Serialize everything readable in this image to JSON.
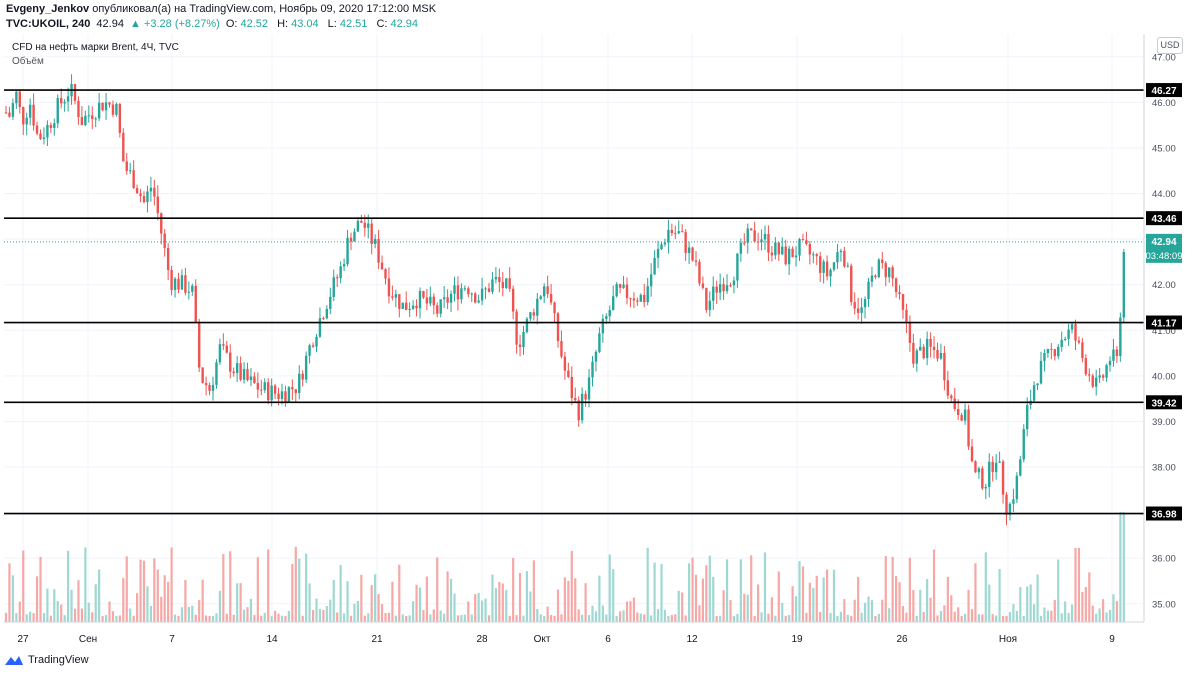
{
  "header": {
    "author": "Evgeny_Jenkov",
    "published": "опубликовал(а) на TradingView.com, Ноябрь 09, 2020 17:12:00 MSK",
    "symbol": "TVC:UKOIL, 240",
    "last": "42.94",
    "change": "▲ +3.28 (+8.27%)",
    "o_label": "O:",
    "o": "42.52",
    "h_label": "H:",
    "h": "43.04",
    "l_label": "L:",
    "l": "42.51",
    "c_label": "C:",
    "c": "42.94"
  },
  "legend": {
    "title": "CFD на нефть марки Brent, 4Ч, TVC",
    "volume": "Объём"
  },
  "currency_button": "USD",
  "footer": {
    "brand": "TradingView"
  },
  "colors": {
    "up": "#26a69a",
    "down": "#ef5350",
    "vol_up": "#9fd8d2",
    "vol_down": "#f5a8a6",
    "level": "#000000"
  },
  "chart_data": {
    "type": "candlestick",
    "ylim": [
      34.6,
      47.5
    ],
    "y_ticks": [
      35.0,
      36.0,
      37.0,
      38.0,
      39.0,
      40.0,
      41.0,
      42.0,
      43.0,
      44.0,
      45.0,
      46.0,
      47.0
    ],
    "x_ticks": [
      "27",
      "Сен",
      "7",
      "14",
      "21",
      "28",
      "Окт",
      "6",
      "12",
      "19",
      "26",
      "Ноя",
      "9"
    ],
    "horizontal_levels": [
      46.27,
      43.46,
      41.17,
      39.42,
      36.98
    ],
    "current_price": 42.94,
    "countdown": "03:48:09",
    "path_anchors": [
      [
        0,
        45.9
      ],
      [
        10,
        45.7
      ],
      [
        16,
        46.2
      ],
      [
        22,
        45.6
      ],
      [
        30,
        46.0
      ],
      [
        38,
        45.2
      ],
      [
        46,
        45.4
      ],
      [
        58,
        45.9
      ],
      [
        70,
        46.3
      ],
      [
        82,
        45.6
      ],
      [
        92,
        45.8
      ],
      [
        104,
        46.0
      ],
      [
        116,
        45.9
      ],
      [
        124,
        44.6
      ],
      [
        134,
        44.3
      ],
      [
        144,
        43.8
      ],
      [
        152,
        44.2
      ],
      [
        160,
        43.3
      ],
      [
        170,
        42.1
      ],
      [
        182,
        42.0
      ],
      [
        192,
        41.9
      ],
      [
        200,
        40.0
      ],
      [
        210,
        39.7
      ],
      [
        220,
        40.6
      ],
      [
        232,
        40.2
      ],
      [
        246,
        39.9
      ],
      [
        262,
        39.7
      ],
      [
        280,
        39.6
      ],
      [
        298,
        39.8
      ],
      [
        312,
        40.8
      ],
      [
        326,
        41.6
      ],
      [
        340,
        42.3
      ],
      [
        350,
        43.1
      ],
      [
        362,
        43.4
      ],
      [
        376,
        42.8
      ],
      [
        390,
        41.9
      ],
      [
        404,
        41.5
      ],
      [
        416,
        41.7
      ],
      [
        426,
        41.6
      ],
      [
        438,
        41.4
      ],
      [
        452,
        41.8
      ],
      [
        466,
        42.0
      ],
      [
        480,
        41.7
      ],
      [
        494,
        42.1
      ],
      [
        508,
        41.9
      ],
      [
        518,
        40.7
      ],
      [
        530,
        41.3
      ],
      [
        546,
        42.1
      ],
      [
        556,
        41.0
      ],
      [
        566,
        40.0
      ],
      [
        578,
        39.2
      ],
      [
        590,
        39.9
      ],
      [
        600,
        40.9
      ],
      [
        616,
        41.8
      ],
      [
        630,
        41.8
      ],
      [
        644,
        41.7
      ],
      [
        656,
        42.6
      ],
      [
        668,
        43.2
      ],
      [
        680,
        43.1
      ],
      [
        694,
        42.5
      ],
      [
        706,
        41.5
      ],
      [
        718,
        42.0
      ],
      [
        732,
        42.2
      ],
      [
        746,
        43.0
      ],
      [
        760,
        43.1
      ],
      [
        772,
        42.8
      ],
      [
        786,
        42.6
      ],
      [
        800,
        42.8
      ],
      [
        814,
        42.6
      ],
      [
        828,
        42.2
      ],
      [
        842,
        42.9
      ],
      [
        852,
        41.7
      ],
      [
        862,
        41.4
      ],
      [
        876,
        42.4
      ],
      [
        890,
        42.3
      ],
      [
        902,
        41.4
      ],
      [
        914,
        40.4
      ],
      [
        926,
        40.6
      ],
      [
        940,
        40.5
      ],
      [
        952,
        39.4
      ],
      [
        964,
        39.2
      ],
      [
        974,
        37.8
      ],
      [
        986,
        37.7
      ],
      [
        996,
        38.3
      ],
      [
        1008,
        37.0
      ],
      [
        1018,
        37.8
      ],
      [
        1026,
        39.1
      ],
      [
        1036,
        40.0
      ],
      [
        1048,
        40.4
      ],
      [
        1060,
        40.8
      ],
      [
        1072,
        41.0
      ],
      [
        1084,
        40.3
      ],
      [
        1098,
        39.7
      ],
      [
        1110,
        40.4
      ],
      [
        1118,
        40.3
      ],
      [
        1124,
        42.8
      ],
      [
        1128,
        42.94
      ]
    ]
  }
}
